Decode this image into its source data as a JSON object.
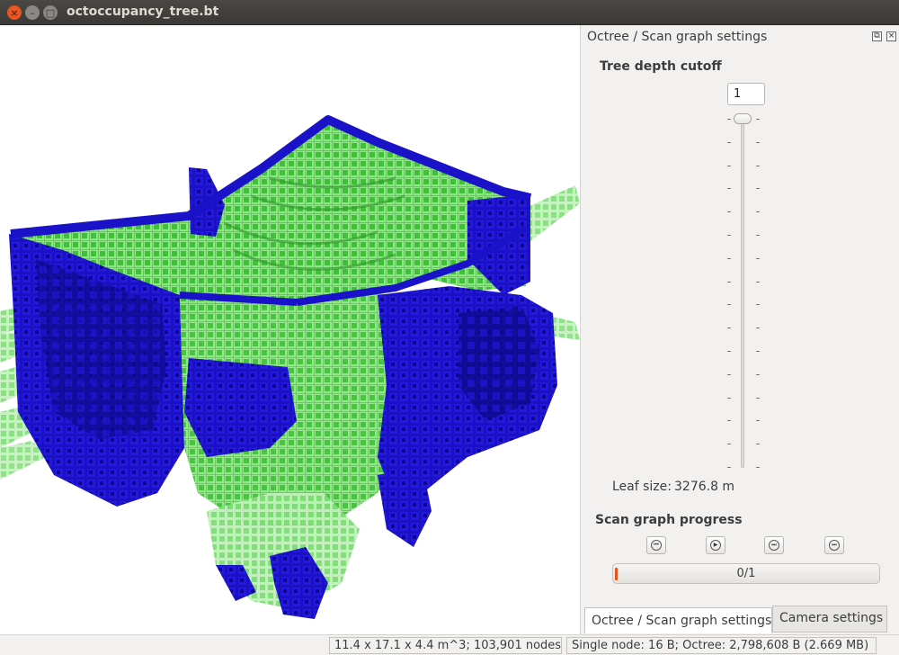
{
  "window": {
    "title": "octoccupancy_tree.bt",
    "close_glyph": "×",
    "minimize_glyph": "–",
    "maximize_glyph": "□"
  },
  "colors": {
    "occupied_blue": "#1a12c8",
    "free_green": "#3fcf3a",
    "accent": "#e95420",
    "viewport_bg": "#ffffff"
  },
  "viewport": {
    "content": "3D octree voxel rendering",
    "icon": "octomap-3d-view"
  },
  "dock": {
    "title": "Octree / Scan graph settings",
    "float_glyph": "⧉",
    "close_glyph": "×",
    "depth_label": "Tree depth cutoff",
    "depth_value": "1",
    "slider_position_fraction": 0.0,
    "leaf_label": "Leaf size:",
    "leaf_value": "3276.8 m",
    "scan_label": "Scan graph progress",
    "buttons": [
      {
        "name": "first",
        "glyph": "⏮",
        "icon": "skip-first-icon"
      },
      {
        "name": "play",
        "glyph": "▶",
        "icon": "play-icon"
      },
      {
        "name": "next",
        "glyph": "⏭",
        "icon": "step-forward-icon"
      },
      {
        "name": "last",
        "glyph": "⏭",
        "icon": "skip-last-icon"
      }
    ],
    "progress_text": "0/1",
    "progress_fraction": 0.0
  },
  "tabs": [
    {
      "label": "Octree / Scan graph settings",
      "active": true
    },
    {
      "label": "Camera settings",
      "active": false
    }
  ],
  "status": {
    "dimensions": "11.4 x 17.1 x 4.4 m^3; 103,901 nodes",
    "memory": "Single node: 16 B; Octree: 2,798,608 B (2.669 MB)"
  }
}
